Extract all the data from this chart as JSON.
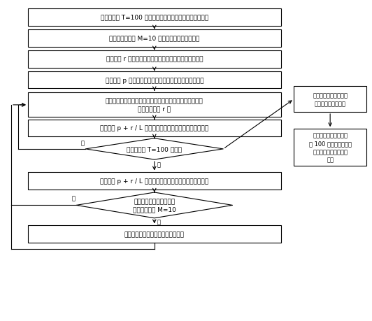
{
  "bg_color": "#ffffff",
  "box_edge": "#000000",
  "box_fill": "#ffffff",
  "arrow_color": "#000000",
  "text_color": "#000000",
  "figsize": [
    5.32,
    4.6
  ],
  "dpi": 100,
  "main_fs": 6.5,
  "side_fs": 6.0,
  "b1_text": "设置计数器 T=100 作为调整检查抗原所用检测器集的周期",
  "b2_text": "设置信息素阈值 M=10 作为信息素计量的最大值",
  "b3_text": "定义变量 r 表示需检查的抗原与候选检测器之间的匹配度",
  "b4_text": "定义变量 p 表示候选检测器用于检查抗原时具有的信息素",
  "b5_text": "计算抗原与每个候选检测器之间对应位置且相同的子串的最\n大长度记录到 r 中",
  "b6_text": "使用公式 p + r / L 计算出的值更新候选检测器的信息素值",
  "d1_text": "是否检查了 T=100 个抗原",
  "b7_text": "使用公式 p + r / L 计算出的值更新候选检测器的信息素值",
  "d2_text": "存在候选检测器的信息素\n值大于或等于 M=10",
  "b8_text": "将所有候选检测器中信息素的值减半",
  "r1_text": "按照信息素由低到高对\n候选检测器进行排序",
  "r2_text": "按照信息素由高到低选\n择 100 个候选检测器构\n建检查抗原所需的检测\n器集",
  "yes_text": "是",
  "no_text": "否"
}
